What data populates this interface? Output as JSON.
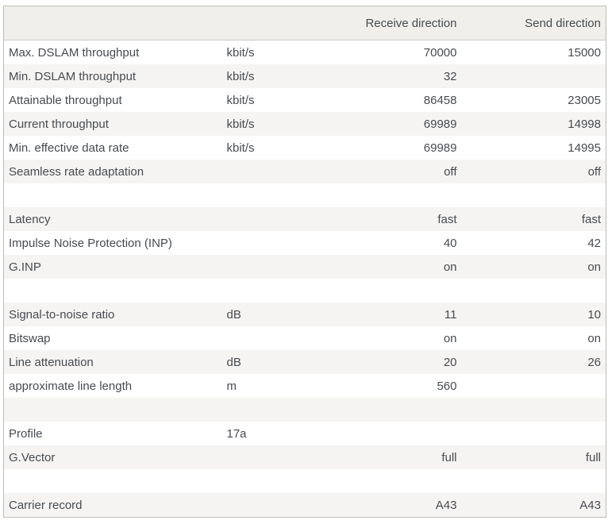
{
  "table": {
    "headers": {
      "label": "",
      "unit": "",
      "receive": "Receive direction",
      "send": "Send direction"
    },
    "rows": [
      {
        "label": "Max. DSLAM throughput",
        "unit": "kbit/s",
        "receive": "70000",
        "send": "15000"
      },
      {
        "label": "Min. DSLAM throughput",
        "unit": "kbit/s",
        "receive": "32",
        "send": ""
      },
      {
        "label": "Attainable throughput",
        "unit": "kbit/s",
        "receive": "86458",
        "send": "23005"
      },
      {
        "label": "Current throughput",
        "unit": "kbit/s",
        "receive": "69989",
        "send": "14998"
      },
      {
        "label": "Min. effective data rate",
        "unit": "kbit/s",
        "receive": "69989",
        "send": "14995"
      },
      {
        "label": "Seamless rate adaptation",
        "unit": "",
        "receive": "off",
        "send": "off"
      },
      {
        "spacer": true,
        "label": "",
        "unit": "",
        "receive": "",
        "send": ""
      },
      {
        "label": "Latency",
        "unit": "",
        "receive": "fast",
        "send": "fast"
      },
      {
        "label": "Impulse Noise Protection (INP)",
        "unit": "",
        "receive": "40",
        "send": "42"
      },
      {
        "label": "G.INP",
        "unit": "",
        "receive": "on",
        "send": "on"
      },
      {
        "spacer": true,
        "label": "",
        "unit": "",
        "receive": "",
        "send": ""
      },
      {
        "label": "Signal-to-noise ratio",
        "unit": "dB",
        "receive": "11",
        "send": "10"
      },
      {
        "label": "Bitswap",
        "unit": "",
        "receive": "on",
        "send": "on"
      },
      {
        "label": "Line attenuation",
        "unit": "dB",
        "receive": "20",
        "send": "26"
      },
      {
        "label": "approximate line length",
        "unit": "m",
        "receive": "560",
        "send": ""
      },
      {
        "spacer": true,
        "label": "",
        "unit": "",
        "receive": "",
        "send": ""
      },
      {
        "label": "Profile",
        "unit": "17a",
        "receive": "",
        "send": ""
      },
      {
        "label": "G.Vector",
        "unit": "",
        "receive": "full",
        "send": "full"
      },
      {
        "spacer": true,
        "label": "",
        "unit": "",
        "receive": "",
        "send": ""
      },
      {
        "label": "Carrier record",
        "unit": "",
        "receive": "A43",
        "send": "A43"
      }
    ],
    "colors": {
      "header_bg": "#f0efec",
      "stripe_bg": "#f5f4f2",
      "row_bg": "#ffffff",
      "outer_border": "#bcbcb7",
      "header_border": "#c9c9c5",
      "text": "#474b51"
    }
  }
}
